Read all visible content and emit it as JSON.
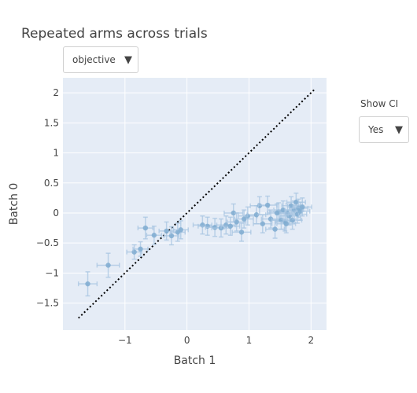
{
  "title": "Repeated arms across trials",
  "metric_dropdown": {
    "selected": "objective",
    "caret": "▼"
  },
  "ci_control": {
    "label": "Show CI",
    "selected": "Yes",
    "caret": "▼"
  },
  "colors": {
    "plot_bg": "#e5ecf6",
    "grid": "#ffffff",
    "marker": "#7fabd0",
    "error_bar": "#a9c6e2",
    "diagonal": "#000000"
  },
  "chart_data": {
    "type": "scatter",
    "title": "Repeated arms across trials",
    "xlabel": "Batch 1",
    "ylabel": "Batch 0",
    "xlim": [
      -2.0,
      2.25
    ],
    "ylim": [
      -1.95,
      2.25
    ],
    "x_ticks": [
      -1,
      0,
      1,
      2
    ],
    "x_tick_labels": [
      "−1",
      "0",
      "1",
      "2"
    ],
    "y_ticks": [
      -1.5,
      -1,
      -0.5,
      0,
      0.5,
      1,
      1.5,
      2
    ],
    "y_tick_labels": [
      "−1.5",
      "−1",
      "−0.5",
      "0",
      "0.5",
      "1",
      "1.5",
      "2"
    ],
    "grid": true,
    "reference_line": {
      "style": "dotted",
      "x": [
        -1.75,
        2.05
      ],
      "y": [
        -1.75,
        2.05
      ]
    },
    "points": [
      {
        "x": -1.6,
        "y": -1.18,
        "ex": 0.15,
        "ey": 0.2
      },
      {
        "x": -1.27,
        "y": -0.87,
        "ex": 0.18,
        "ey": 0.2
      },
      {
        "x": -0.85,
        "y": -0.65,
        "ex": 0.12,
        "ey": 0.12
      },
      {
        "x": -0.75,
        "y": -0.6,
        "ex": 0.12,
        "ey": 0.12
      },
      {
        "x": -0.67,
        "y": -0.25,
        "ex": 0.12,
        "ey": 0.18
      },
      {
        "x": -0.53,
        "y": -0.37,
        "ex": 0.12,
        "ey": 0.15
      },
      {
        "x": -0.33,
        "y": -0.3,
        "ex": 0.12,
        "ey": 0.15
      },
      {
        "x": -0.25,
        "y": -0.38,
        "ex": 0.12,
        "ey": 0.15
      },
      {
        "x": -0.15,
        "y": -0.32,
        "ex": 0.12,
        "ey": 0.15
      },
      {
        "x": -0.1,
        "y": -0.28,
        "ex": 0.12,
        "ey": 0.15
      },
      {
        "x": 0.25,
        "y": -0.2,
        "ex": 0.15,
        "ey": 0.15
      },
      {
        "x": 0.33,
        "y": -0.22,
        "ex": 0.15,
        "ey": 0.15
      },
      {
        "x": 0.45,
        "y": -0.24,
        "ex": 0.15,
        "ey": 0.15
      },
      {
        "x": 0.55,
        "y": -0.25,
        "ex": 0.15,
        "ey": 0.15
      },
      {
        "x": 0.63,
        "y": -0.2,
        "ex": 0.15,
        "ey": 0.15
      },
      {
        "x": 0.7,
        "y": -0.22,
        "ex": 0.15,
        "ey": 0.15
      },
      {
        "x": 0.75,
        "y": 0.0,
        "ex": 0.15,
        "ey": 0.15
      },
      {
        "x": 0.8,
        "y": -0.15,
        "ex": 0.15,
        "ey": 0.15
      },
      {
        "x": 0.88,
        "y": -0.32,
        "ex": 0.15,
        "ey": 0.15
      },
      {
        "x": 0.92,
        "y": -0.1,
        "ex": 0.15,
        "ey": 0.15
      },
      {
        "x": 0.98,
        "y": -0.05,
        "ex": 0.15,
        "ey": 0.15
      },
      {
        "x": 1.12,
        "y": -0.03,
        "ex": 0.15,
        "ey": 0.15
      },
      {
        "x": 1.17,
        "y": 0.12,
        "ex": 0.15,
        "ey": 0.15
      },
      {
        "x": 1.22,
        "y": -0.18,
        "ex": 0.15,
        "ey": 0.15
      },
      {
        "x": 1.3,
        "y": 0.13,
        "ex": 0.15,
        "ey": 0.15
      },
      {
        "x": 1.35,
        "y": -0.1,
        "ex": 0.15,
        "ey": 0.15
      },
      {
        "x": 1.42,
        "y": -0.27,
        "ex": 0.15,
        "ey": 0.15
      },
      {
        "x": 1.48,
        "y": 0.02,
        "ex": 0.15,
        "ey": 0.15
      },
      {
        "x": 1.52,
        "y": -0.12,
        "ex": 0.15,
        "ey": 0.15
      },
      {
        "x": 1.55,
        "y": 0.05,
        "ex": 0.15,
        "ey": 0.15
      },
      {
        "x": 1.58,
        "y": -0.15,
        "ex": 0.15,
        "ey": 0.15
      },
      {
        "x": 1.62,
        "y": 0.0,
        "ex": 0.15,
        "ey": 0.15
      },
      {
        "x": 1.65,
        "y": -0.05,
        "ex": 0.15,
        "ey": 0.15
      },
      {
        "x": 1.68,
        "y": 0.12,
        "ex": 0.15,
        "ey": 0.15
      },
      {
        "x": 1.7,
        "y": -0.12,
        "ex": 0.15,
        "ey": 0.15
      },
      {
        "x": 1.73,
        "y": 0.05,
        "ex": 0.15,
        "ey": 0.15
      },
      {
        "x": 1.76,
        "y": 0.18,
        "ex": 0.15,
        "ey": 0.15
      },
      {
        "x": 1.78,
        "y": -0.02,
        "ex": 0.15,
        "ey": 0.15
      },
      {
        "x": 1.8,
        "y": 0.08,
        "ex": 0.15,
        "ey": 0.15
      },
      {
        "x": 1.83,
        "y": 0.03,
        "ex": 0.15,
        "ey": 0.15
      },
      {
        "x": 1.86,
        "y": 0.1,
        "ex": 0.15,
        "ey": 0.15
      },
      {
        "x": 1.6,
        "y": -0.18,
        "ex": 0.15,
        "ey": 0.15
      },
      {
        "x": 1.45,
        "y": 0.0,
        "ex": 0.15,
        "ey": 0.15
      }
    ]
  }
}
